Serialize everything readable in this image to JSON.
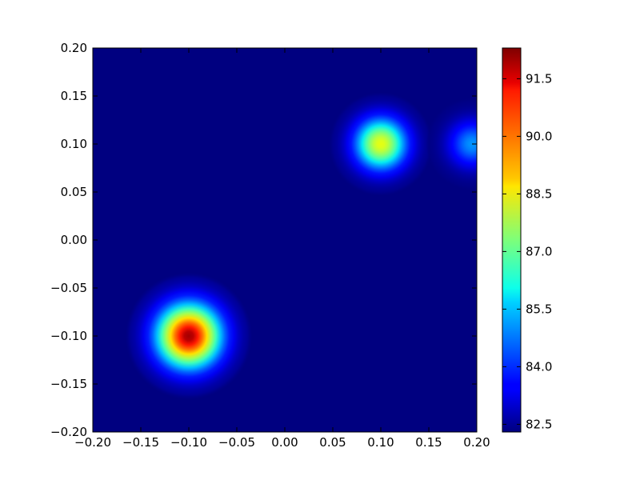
{
  "chart_data": {
    "type": "heatmap",
    "title": "",
    "xlabel": "",
    "ylabel": "",
    "xlim": [
      -0.2,
      0.2
    ],
    "ylim": [
      -0.2,
      0.2
    ],
    "x_ticks": [
      "−0.20",
      "−0.15",
      "−0.10",
      "−0.05",
      "0.00",
      "0.05",
      "0.10",
      "0.15",
      "0.20"
    ],
    "x_tick_values": [
      -0.2,
      -0.15,
      -0.1,
      -0.05,
      0.0,
      0.05,
      0.1,
      0.15,
      0.2
    ],
    "y_ticks": [
      "−0.20",
      "−0.15",
      "−0.10",
      "−0.05",
      "0.00",
      "0.05",
      "0.10",
      "0.15",
      "0.20"
    ],
    "y_tick_values": [
      -0.2,
      -0.15,
      -0.1,
      -0.05,
      0.0,
      0.05,
      0.1,
      0.15,
      0.2
    ],
    "colormap": "jet",
    "background_value": 82.3,
    "peaks": [
      {
        "x": -0.1,
        "y": -0.1,
        "value": 92.0,
        "width": 0.022
      },
      {
        "x": 0.1,
        "y": 0.1,
        "value": 88.6,
        "width": 0.018
      },
      {
        "x": 0.195,
        "y": 0.1,
        "value": 85.0,
        "width": 0.016
      }
    ],
    "colorbar": {
      "min": 82.3,
      "max": 92.3,
      "ticks": [
        "82.5",
        "84.0",
        "85.5",
        "87.0",
        "88.5",
        "90.0",
        "91.5"
      ],
      "tick_values": [
        82.5,
        84.0,
        85.5,
        87.0,
        88.5,
        90.0,
        91.5
      ]
    },
    "grid": false,
    "legend": "none"
  }
}
